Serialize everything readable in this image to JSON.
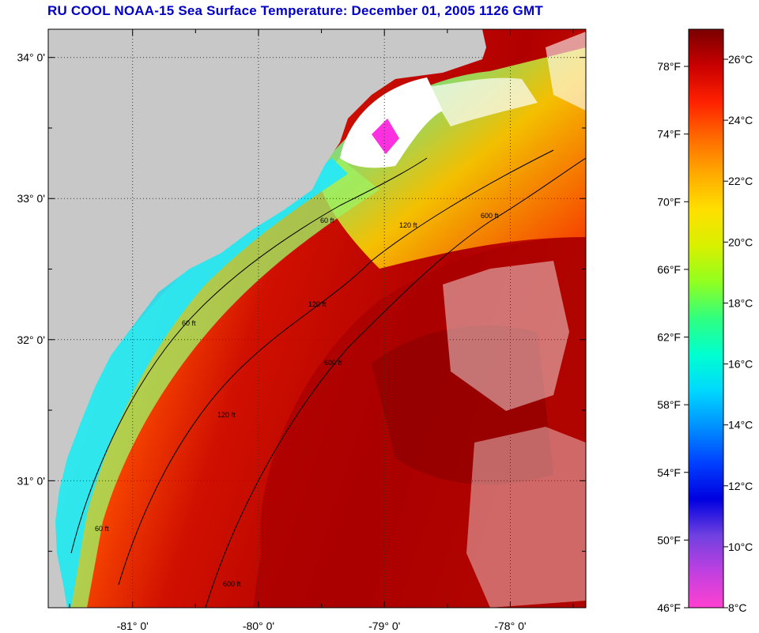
{
  "title": "RU COOL  NOAA-15  Sea Surface Temperature:  December 01, 2005 1126 GMT",
  "map": {
    "lon_range": [
      -81.67,
      -77.4
    ],
    "lat_range": [
      30.1,
      34.2
    ],
    "lat_ticks": [
      {
        "value": 34,
        "label": "34° 0'"
      },
      {
        "value": 33,
        "label": "33° 0'"
      },
      {
        "value": 32,
        "label": "32° 0'"
      },
      {
        "value": 31,
        "label": "31° 0'"
      }
    ],
    "lon_ticks": [
      {
        "value": -81,
        "label": "-81° 0'"
      },
      {
        "value": -80,
        "label": "-80° 0'"
      },
      {
        "value": -79,
        "label": "-79° 0'"
      },
      {
        "value": -78,
        "label": "-78° 0'"
      }
    ],
    "land_color": "#c8c8c8",
    "contour_labels": [
      "60 ft",
      "120 ft",
      "600 ft"
    ]
  },
  "colorbar": {
    "f_labels": [
      "78°F",
      "74°F",
      "70°F",
      "66°F",
      "62°F",
      "58°F",
      "54°F",
      "50°F",
      "46°F"
    ],
    "c_labels": [
      "26°C",
      "24°C",
      "22°C",
      "20°C",
      "18°C",
      "16°C",
      "14°C",
      "12°C",
      "10°C",
      "8°C"
    ],
    "colors_top_to_bottom": [
      "#7a0000",
      "#c80000",
      "#ff2000",
      "#ff6a00",
      "#ffaa00",
      "#ffe000",
      "#d8f000",
      "#90ff20",
      "#30ff80",
      "#00ffd0",
      "#00d8ff",
      "#0090ff",
      "#0040ff",
      "#0000e0",
      "#7040e0",
      "#c040e0",
      "#ff40d0"
    ]
  }
}
